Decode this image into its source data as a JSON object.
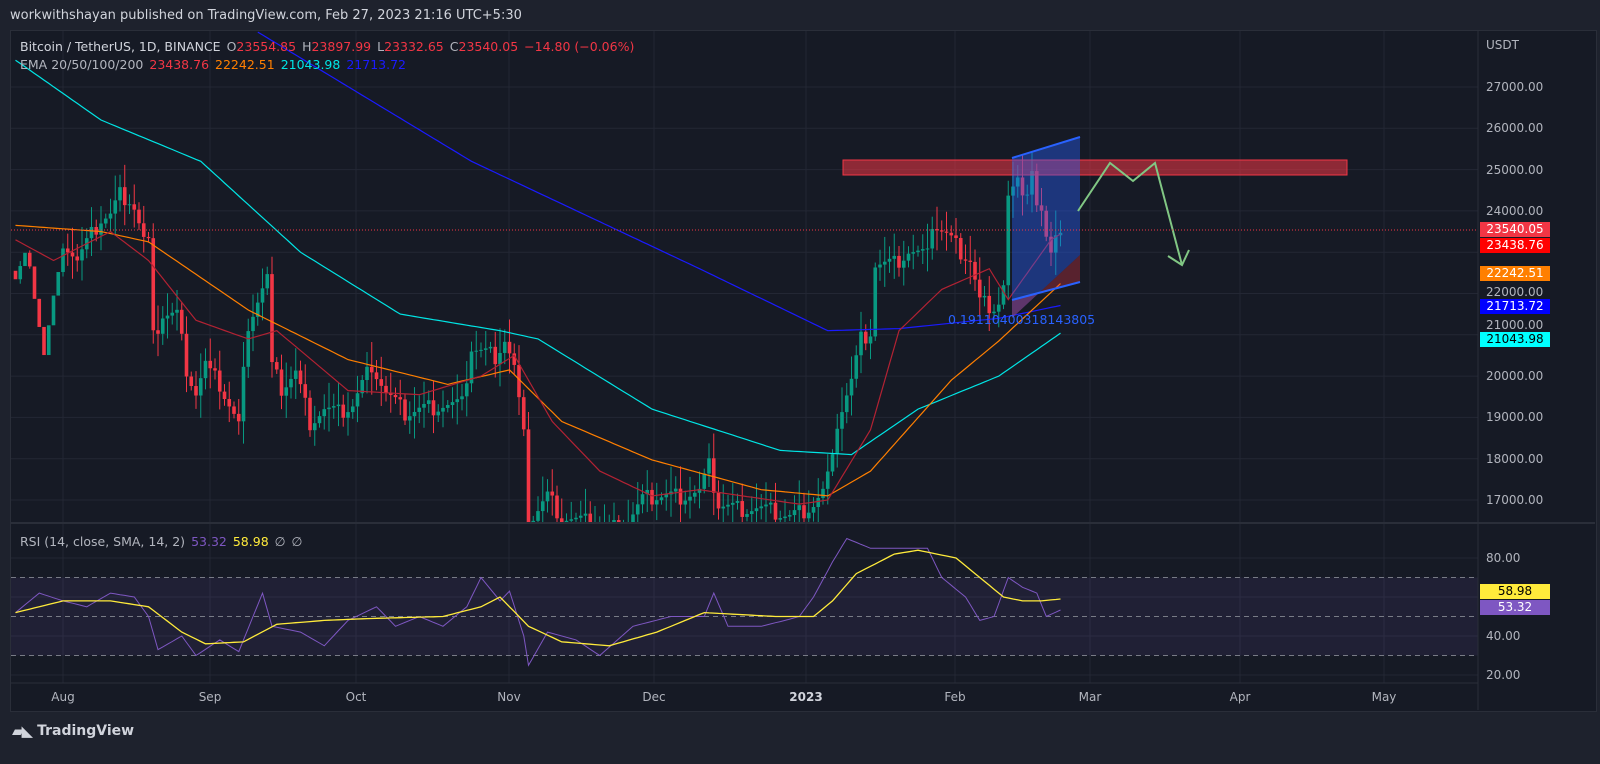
{
  "publish_line": "workwithshayan published on TradingView.com, Feb 27, 2023 21:16 UTC+5:30",
  "symbol": {
    "name": "Bitcoin / TetherUS, 1D, BINANCE",
    "o_label": "O",
    "o": "23554.85",
    "h_label": "H",
    "h": "23897.99",
    "l_label": "L",
    "l": "23332.65",
    "c_label": "C",
    "c": "23540.05",
    "change": "−14.80 (−0.06%)"
  },
  "ema": {
    "label": "EMA 20/50/100/200",
    "v20": "23438.76",
    "v50": "22242.51",
    "v100": "21043.98",
    "v200": "21713.72"
  },
  "rsi": {
    "label": "RSI (14, close, SMA, 14, 2)",
    "rsi": "53.32",
    "sma": "58.98",
    "n1": "∅",
    "n2": "∅"
  },
  "price_axis": {
    "unit": "USDT",
    "labels": [
      "27000.00",
      "26000.00",
      "25000.00",
      "24000.00",
      "22000.00",
      "21000.00",
      "20000.00",
      "19000.00",
      "18000.00",
      "17000.00"
    ]
  },
  "rsi_axis": {
    "labels": [
      "80.00",
      "40.00",
      "20.00"
    ]
  },
  "time_axis": [
    "Aug",
    "Sep",
    "Oct",
    "Nov",
    "Dec",
    "2023",
    "Feb",
    "Mar",
    "Apr",
    "May"
  ],
  "annotation": {
    "ratio_label": "0.19110400318143805"
  },
  "footer": {
    "brand": "TradingView"
  },
  "colors": {
    "up": "#089981",
    "down": "#f23645",
    "ema20": "#f23645",
    "ema50": "#ff7f00",
    "ema100": "#00e5e5",
    "ema200": "#1a1aff",
    "rsi": "#7e57c2",
    "rsi_sma": "#ffeb3b"
  },
  "chart_data": {
    "type": "candlestick",
    "x_unit": "days since 2022-08-01",
    "price_range": [
      16400,
      28500
    ],
    "close_anchors": [
      [
        -10,
        22800
      ],
      [
        -8,
        23300
      ],
      [
        -6,
        22500
      ],
      [
        -4,
        21000
      ],
      [
        -2,
        22300
      ],
      [
        0,
        23300
      ],
      [
        3,
        22800
      ],
      [
        5,
        23200
      ],
      [
        8,
        23800
      ],
      [
        10,
        23900
      ],
      [
        12,
        24400
      ],
      [
        14,
        24300
      ],
      [
        15,
        24100
      ],
      [
        17,
        23300
      ],
      [
        18,
        23200
      ],
      [
        19,
        20900
      ],
      [
        21,
        21500
      ],
      [
        24,
        21500
      ],
      [
        26,
        20200
      ],
      [
        28,
        19600
      ],
      [
        30,
        20300
      ],
      [
        31,
        20050
      ],
      [
        33,
        19800
      ],
      [
        37,
        18800
      ],
      [
        39,
        21300
      ],
      [
        43,
        22400
      ],
      [
        44,
        20200
      ],
      [
        46,
        19700
      ],
      [
        49,
        20100
      ],
      [
        52,
        18900
      ],
      [
        55,
        19200
      ],
      [
        58,
        19100
      ],
      [
        61,
        19300
      ],
      [
        65,
        20300
      ],
      [
        68,
        19600
      ],
      [
        72,
        19100
      ],
      [
        75,
        19200
      ],
      [
        80,
        19300
      ],
      [
        84,
        19300
      ],
      [
        86,
        20700
      ],
      [
        88,
        20600
      ],
      [
        91,
        20500
      ],
      [
        93,
        20900
      ],
      [
        95,
        20200
      ],
      [
        97,
        18500
      ],
      [
        98,
        15900
      ],
      [
        99,
        16600
      ],
      [
        102,
        17100
      ],
      [
        105,
        16600
      ],
      [
        108,
        16500
      ],
      [
        113,
        16400
      ],
      [
        118,
        16300
      ],
      [
        122,
        17000
      ],
      [
        125,
        17100
      ],
      [
        130,
        17100
      ],
      [
        134,
        17200
      ],
      [
        136,
        17800
      ],
      [
        138,
        16900
      ],
      [
        142,
        16800
      ],
      [
        146,
        16800
      ],
      [
        150,
        16700
      ],
      [
        153,
        16600
      ],
      [
        155,
        16700
      ],
      [
        158,
        16900
      ],
      [
        160,
        17200
      ],
      [
        162,
        17900
      ],
      [
        163,
        18900
      ],
      [
        166,
        19900
      ],
      [
        168,
        20900
      ],
      [
        170,
        21100
      ],
      [
        171,
        22700
      ],
      [
        175,
        22700
      ],
      [
        178,
        23000
      ],
      [
        181,
        22900
      ],
      [
        183,
        23700
      ],
      [
        186,
        23400
      ],
      [
        189,
        23000
      ],
      [
        191,
        22800
      ],
      [
        193,
        21800
      ],
      [
        196,
        21700
      ],
      [
        197,
        21800
      ],
      [
        198,
        22200
      ],
      [
        199,
        24300
      ],
      [
        201,
        24600
      ],
      [
        203,
        24500
      ],
      [
        204,
        25000
      ],
      [
        205,
        24100
      ],
      [
        206,
        23900
      ],
      [
        207,
        23200
      ],
      [
        208,
        23200
      ],
      [
        209,
        23550
      ],
      [
        210,
        23540
      ]
    ],
    "ema20": [
      [
        -10,
        23300
      ],
      [
        -2,
        22800
      ],
      [
        10,
        23500
      ],
      [
        18,
        22800
      ],
      [
        28,
        21350
      ],
      [
        39,
        20900
      ],
      [
        45,
        21100
      ],
      [
        60,
        19650
      ],
      [
        75,
        19550
      ],
      [
        88,
        20000
      ],
      [
        95,
        20500
      ],
      [
        103,
        18900
      ],
      [
        113,
        17700
      ],
      [
        124,
        17100
      ],
      [
        134,
        17250
      ],
      [
        155,
        16900
      ],
      [
        161,
        17000
      ],
      [
        170,
        18700
      ],
      [
        176,
        21100
      ],
      [
        185,
        22100
      ],
      [
        195,
        22600
      ],
      [
        199,
        21850
      ],
      [
        208,
        23300
      ],
      [
        210,
        23440
      ]
    ],
    "ema50": [
      [
        -10,
        23650
      ],
      [
        8,
        23500
      ],
      [
        18,
        23250
      ],
      [
        39,
        21600
      ],
      [
        60,
        20400
      ],
      [
        81,
        19800
      ],
      [
        94,
        20150
      ],
      [
        105,
        18900
      ],
      [
        124,
        17970
      ],
      [
        147,
        17250
      ],
      [
        161,
        17100
      ],
      [
        170,
        17700
      ],
      [
        187,
        19900
      ],
      [
        197,
        20850
      ],
      [
        210,
        22240
      ]
    ],
    "ema100": [
      [
        -10,
        27650
      ],
      [
        8,
        26200
      ],
      [
        29,
        25200
      ],
      [
        50,
        23000
      ],
      [
        71,
        21500
      ],
      [
        92,
        21100
      ],
      [
        100,
        20900
      ],
      [
        124,
        19200
      ],
      [
        151,
        18200
      ],
      [
        166,
        18100
      ],
      [
        180,
        19200
      ],
      [
        197,
        20000
      ],
      [
        210,
        21040
      ]
    ],
    "ema200": [
      [
        40,
        28400
      ],
      [
        86,
        25200
      ],
      [
        134,
        22600
      ],
      [
        161,
        21100
      ],
      [
        176,
        21150
      ],
      [
        197,
        21400
      ],
      [
        210,
        21710
      ]
    ],
    "rsi": [
      [
        -10,
        52
      ],
      [
        -5,
        62
      ],
      [
        0,
        58
      ],
      [
        5,
        55
      ],
      [
        10,
        62
      ],
      [
        15,
        60
      ],
      [
        18,
        50
      ],
      [
        20,
        33
      ],
      [
        25,
        40
      ],
      [
        28,
        30
      ],
      [
        33,
        38
      ],
      [
        37,
        32
      ],
      [
        42,
        62
      ],
      [
        44,
        45
      ],
      [
        50,
        42
      ],
      [
        55,
        35
      ],
      [
        60,
        48
      ],
      [
        66,
        55
      ],
      [
        70,
        45
      ],
      [
        75,
        50
      ],
      [
        80,
        45
      ],
      [
        85,
        55
      ],
      [
        88,
        70
      ],
      [
        92,
        58
      ],
      [
        94,
        63
      ],
      [
        97,
        40
      ],
      [
        98,
        25
      ],
      [
        102,
        42
      ],
      [
        108,
        38
      ],
      [
        113,
        30
      ],
      [
        120,
        45
      ],
      [
        128,
        50
      ],
      [
        135,
        50
      ],
      [
        137,
        62
      ],
      [
        140,
        45
      ],
      [
        147,
        45
      ],
      [
        152,
        48
      ],
      [
        155,
        50
      ],
      [
        158,
        60
      ],
      [
        162,
        78
      ],
      [
        165,
        90
      ],
      [
        170,
        85
      ],
      [
        175,
        85
      ],
      [
        182,
        85
      ],
      [
        185,
        70
      ],
      [
        190,
        60
      ],
      [
        193,
        48
      ],
      [
        196,
        50
      ],
      [
        199,
        70
      ],
      [
        202,
        65
      ],
      [
        205,
        62
      ],
      [
        207,
        50
      ],
      [
        210,
        53.32
      ]
    ],
    "rsi_sma": [
      [
        -10,
        52
      ],
      [
        0,
        58
      ],
      [
        10,
        58
      ],
      [
        18,
        55
      ],
      [
        25,
        42
      ],
      [
        30,
        36
      ],
      [
        38,
        37
      ],
      [
        45,
        46
      ],
      [
        55,
        48
      ],
      [
        65,
        49
      ],
      [
        80,
        50
      ],
      [
        88,
        55
      ],
      [
        92,
        60
      ],
      [
        98,
        45
      ],
      [
        105,
        37
      ],
      [
        115,
        35
      ],
      [
        125,
        42
      ],
      [
        135,
        52
      ],
      [
        150,
        50
      ],
      [
        158,
        50
      ],
      [
        162,
        58
      ],
      [
        167,
        72
      ],
      [
        175,
        82
      ],
      [
        180,
        84
      ],
      [
        188,
        80
      ],
      [
        193,
        70
      ],
      [
        198,
        60
      ],
      [
        202,
        58
      ],
      [
        206,
        58
      ],
      [
        210,
        58.98
      ]
    ],
    "rsi_range": [
      10,
      100
    ],
    "rsi_bands": [
      70,
      50,
      30
    ],
    "resistance_zone": [
      24860,
      25180
    ]
  }
}
